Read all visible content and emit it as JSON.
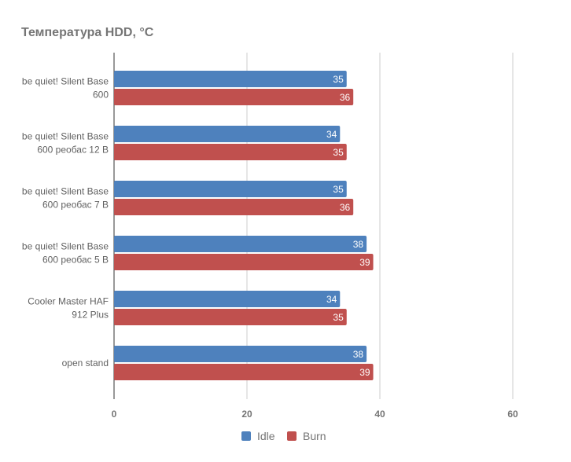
{
  "chart_data": {
    "type": "bar",
    "orientation": "horizontal",
    "title": "Температура HDD, °C",
    "categories": [
      [
        "be quiet! Silent Base",
        "600"
      ],
      [
        "be quiet! Silent Base",
        "600 реобас 12 В"
      ],
      [
        "be quiet! Silent Base",
        "600 реобас 7 В"
      ],
      [
        "be quiet! Silent Base",
        "600 реобас 5 В"
      ],
      [
        "Cooler Master HAF",
        "912 Plus"
      ],
      [
        "open stand"
      ]
    ],
    "series": [
      {
        "name": "Idle",
        "color": "#4e81bd",
        "values": [
          35,
          34,
          35,
          38,
          34,
          38
        ]
      },
      {
        "name": "Burn",
        "color": "#c0504e",
        "values": [
          36,
          35,
          36,
          39,
          35,
          39
        ]
      }
    ],
    "xlim": [
      0,
      60
    ],
    "xticks": [
      "0",
      "20",
      "40",
      "60"
    ],
    "grid": true,
    "legend": "bottom",
    "xlabel": "",
    "ylabel": ""
  }
}
